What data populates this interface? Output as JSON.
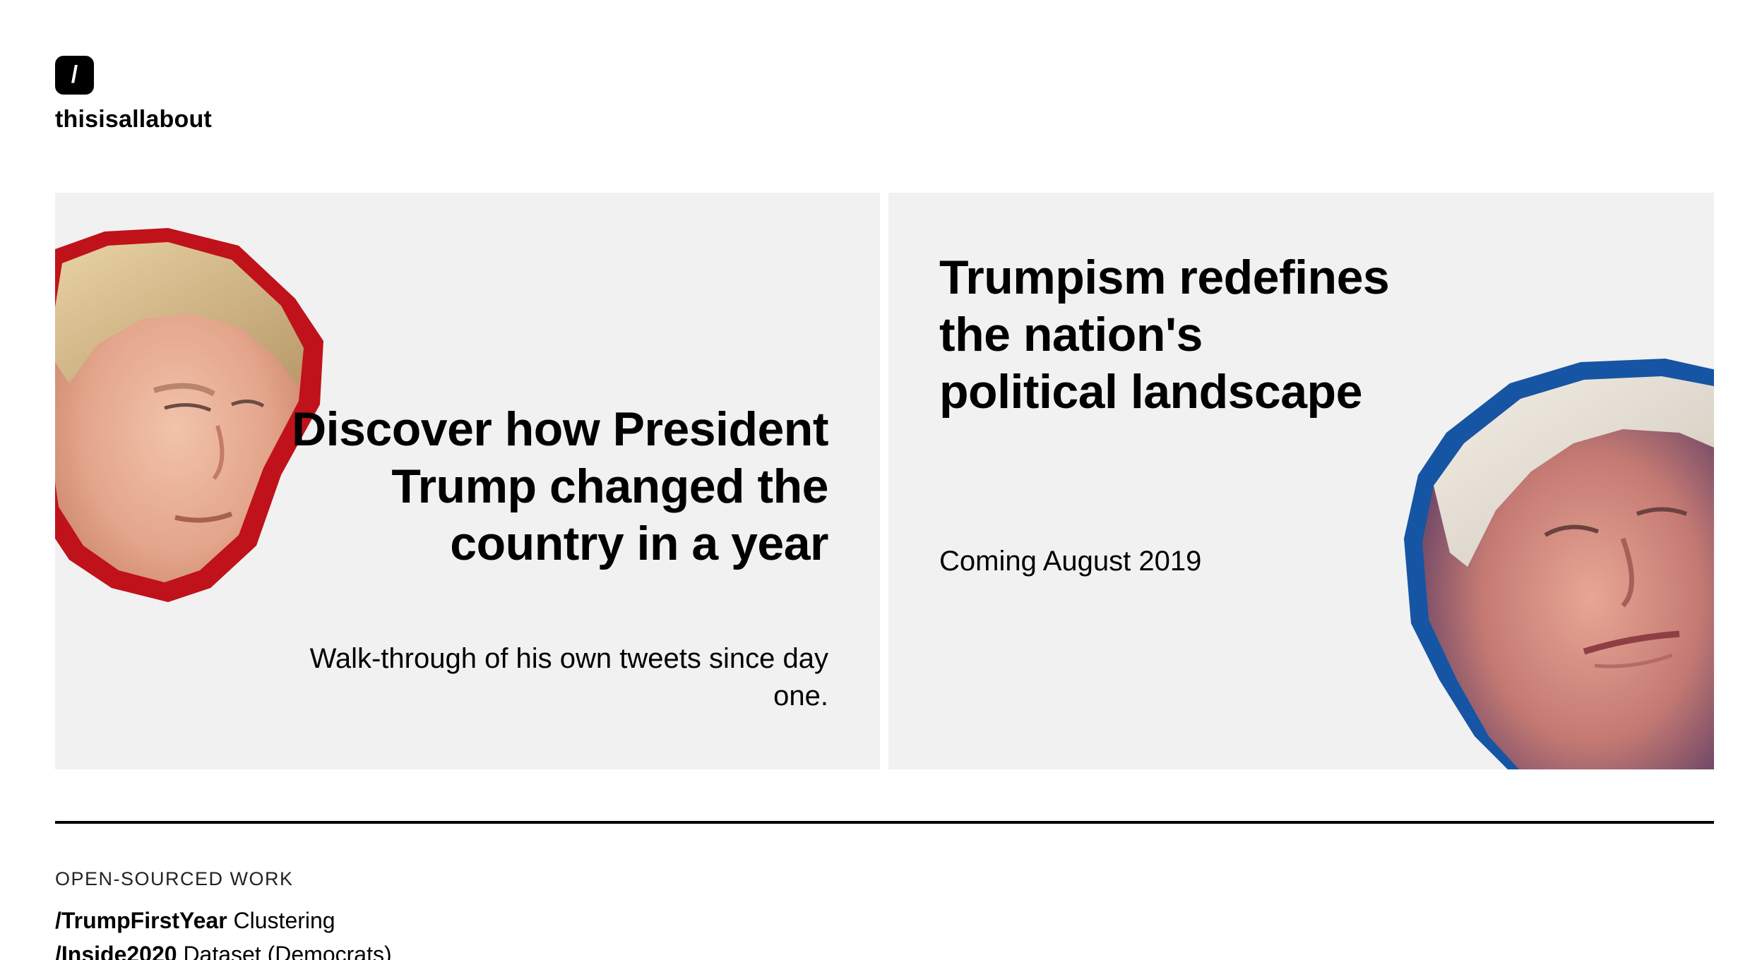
{
  "header": {
    "logo_glyph": "/",
    "site_name": "thisisallabout"
  },
  "cards": [
    {
      "headline": "Discover how President Trump changed the country in a year",
      "subline": "Walk-through of his own tweets since day one.",
      "outline_color": "#c0121a"
    },
    {
      "headline": "Trumpism redefines the nation's political landscape",
      "subline": "Coming August 2019",
      "outline_color": "#1655a3"
    }
  ],
  "section": {
    "label": "OPEN-SOURCED WORK",
    "items": [
      {
        "name": "/TrumpFirstYear",
        "desc": " Clustering"
      },
      {
        "name": "/Inside2020",
        "desc": " Dataset (Democrats)"
      }
    ]
  },
  "colors": {
    "card_bg": "#f1f1f1",
    "accent_red": "#c0121a",
    "accent_blue": "#1655a3"
  }
}
